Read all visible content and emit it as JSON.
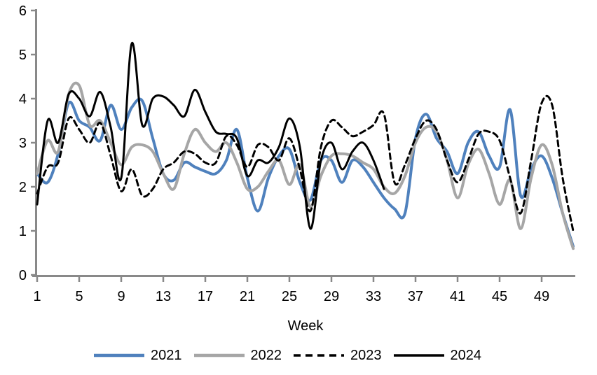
{
  "chart_data": {
    "type": "line",
    "title": "",
    "xlabel": "Week",
    "ylabel": "",
    "x_start": 1,
    "x_range": [
      1,
      52
    ],
    "ylim": [
      0,
      6
    ],
    "x_ticks": [
      1,
      5,
      9,
      13,
      17,
      21,
      25,
      29,
      33,
      37,
      41,
      45,
      49
    ],
    "y_ticks": [
      0,
      1,
      2,
      3,
      4,
      5,
      6
    ],
    "grid": false,
    "legend_position": "bottom",
    "axis_color": "#898989",
    "text_color": "#000000",
    "series": [
      {
        "name": "2021",
        "color": "#4F81BD",
        "style": "solid",
        "values": [
          2.3,
          2.1,
          2.75,
          3.9,
          3.5,
          3.35,
          3.05,
          3.85,
          3.3,
          3.8,
          3.95,
          3.1,
          2.3,
          2.15,
          2.55,
          2.45,
          2.35,
          2.3,
          2.6,
          3.3,
          2.2,
          1.45,
          2.2,
          2.7,
          2.85,
          2.1,
          1.7,
          2.6,
          2.6,
          2.1,
          2.6,
          2.45,
          2.1,
          1.75,
          1.5,
          1.4,
          3.1,
          3.65,
          3.1,
          2.8,
          2.3,
          3.0,
          3.25,
          2.7,
          2.45,
          3.75,
          1.8,
          2.4,
          2.7,
          2.2,
          1.4,
          0.65
        ]
      },
      {
        "name": "2022",
        "color": "#A6A6A6",
        "style": "solid",
        "values": [
          2.3,
          3.05,
          2.8,
          4.1,
          4.3,
          3.4,
          3.5,
          3.0,
          2.5,
          2.9,
          2.95,
          2.8,
          2.3,
          1.95,
          2.75,
          3.3,
          3.0,
          2.8,
          3.0,
          2.55,
          1.95,
          2.0,
          2.35,
          2.6,
          2.05,
          2.5,
          1.55,
          2.25,
          2.7,
          2.75,
          2.7,
          2.55,
          2.4,
          2.0,
          1.85,
          2.25,
          3.0,
          3.35,
          3.25,
          2.6,
          1.75,
          2.5,
          2.85,
          2.3,
          1.6,
          2.15,
          1.05,
          2.2,
          2.95,
          2.5,
          1.4,
          0.6
        ]
      },
      {
        "name": "2023",
        "color": "#000000",
        "style": "dashed",
        "values": [
          1.85,
          2.45,
          2.55,
          3.55,
          3.3,
          3.0,
          3.45,
          2.7,
          1.9,
          2.4,
          1.8,
          1.95,
          2.4,
          2.55,
          2.8,
          2.75,
          2.55,
          2.55,
          3.15,
          2.95,
          2.45,
          2.95,
          2.9,
          2.6,
          3.1,
          2.4,
          1.45,
          2.9,
          3.5,
          3.35,
          3.15,
          3.25,
          3.4,
          3.65,
          2.1,
          2.5,
          3.1,
          3.5,
          3.3,
          2.6,
          2.1,
          2.6,
          3.2,
          3.25,
          3.05,
          2.2,
          1.4,
          2.6,
          3.9,
          3.85,
          2.2,
          1.0
        ]
      },
      {
        "name": "2024",
        "color": "#000000",
        "style": "solid",
        "values": [
          1.6,
          3.5,
          3.0,
          4.1,
          4.0,
          3.6,
          4.15,
          3.35,
          2.2,
          5.25,
          3.4,
          4.0,
          4.05,
          3.85,
          3.6,
          4.2,
          3.7,
          3.25,
          3.2,
          3.1,
          2.25,
          2.6,
          2.55,
          2.9,
          3.55,
          2.9,
          1.05,
          2.6,
          3.0,
          2.4,
          2.8,
          3.0,
          2.6,
          1.95
        ]
      }
    ]
  }
}
